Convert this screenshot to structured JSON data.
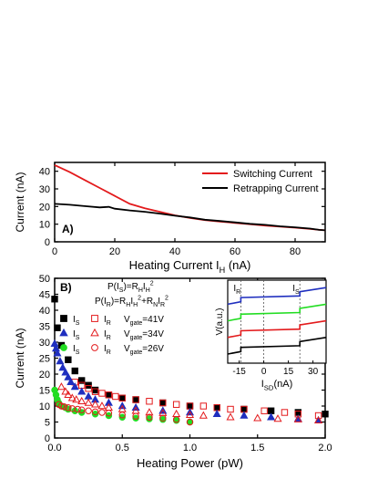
{
  "chart_data": [
    {
      "type": "line",
      "panel_label": "A)",
      "xlabel": "Heating Current I",
      "xlabel_sub": "H",
      "xlabel_unit": " (nA)",
      "ylabel": "Current (nA)",
      "xlim": [
        0,
        90
      ],
      "ylim": [
        0,
        45
      ],
      "xticks": [
        0,
        20,
        40,
        60,
        80
      ],
      "yticks": [
        0,
        10,
        20,
        30,
        40
      ],
      "grid": false,
      "legend_position": "top-right",
      "series": [
        {
          "name": "Switching Current",
          "color": "#e31a1c",
          "x": [
            0,
            5,
            10,
            15,
            20,
            25,
            30,
            35,
            40,
            45,
            50,
            55,
            60,
            65,
            70,
            75,
            80,
            85,
            88,
            90
          ],
          "y": [
            43.5,
            39.5,
            35,
            30.5,
            26,
            21.5,
            19,
            17,
            15,
            13.5,
            12.3,
            11.5,
            10.7,
            10,
            9.2,
            8.6,
            8,
            7.3,
            6.8,
            6.5
          ]
        },
        {
          "name": "Retrapping Current",
          "color": "#000000",
          "x": [
            0,
            5,
            10,
            15,
            18,
            20,
            25,
            30,
            35,
            40,
            45,
            50,
            55,
            60,
            65,
            70,
            75,
            80,
            85,
            88,
            90
          ],
          "y": [
            21.5,
            21,
            20.2,
            19.5,
            19.8,
            18.8,
            17.8,
            17,
            16,
            14.8,
            13.8,
            12.5,
            11.8,
            11,
            10.2,
            9.6,
            8.8,
            8.2,
            7.5,
            6.8,
            6.5
          ]
        }
      ]
    },
    {
      "type": "scatter",
      "panel_label": "B)",
      "xlabel": "Heating Power (pW)",
      "ylabel": "Current (nA)",
      "xlim": [
        0,
        2
      ],
      "ylim": [
        0,
        50
      ],
      "xticks": [
        0.0,
        0.5,
        1.0,
        1.5,
        2.0
      ],
      "yticks": [
        0,
        5,
        10,
        15,
        20,
        25,
        30,
        35,
        40,
        45,
        50
      ],
      "xtick_labels": [
        "0.0",
        "0.5",
        "1.0",
        "1.5",
        "2.0"
      ],
      "grid": false,
      "equation1": "P(I_S)=R_H I_H^2",
      "equation2": "P(I_R)=R_H I_H^2+R_N I_R^2",
      "series": [
        {
          "name": "I_S V_gate=41V",
          "marker": "square-filled",
          "color": "#000000",
          "x": [
            0.0,
            0.02,
            0.05,
            0.1,
            0.15,
            0.2,
            0.25,
            0.3,
            0.4,
            0.5,
            0.6,
            0.8,
            1.0,
            1.2,
            1.4,
            1.6,
            1.8,
            2.0
          ],
          "y": [
            43.5,
            34.5,
            29,
            24.5,
            21,
            18,
            16.5,
            15,
            13.5,
            12.5,
            12,
            11,
            10,
            9.5,
            9,
            8.5,
            8,
            7.5
          ]
        },
        {
          "name": "I_R V_gate=41V",
          "marker": "square-open",
          "color": "#e31a1c",
          "x": [
            0.15,
            0.2,
            0.25,
            0.3,
            0.35,
            0.4,
            0.45,
            0.5,
            0.6,
            0.7,
            0.8,
            0.9,
            1.0,
            1.1,
            1.2,
            1.3,
            1.4,
            1.55,
            1.7,
            1.8,
            1.95
          ],
          "y": [
            17.5,
            16.5,
            15.5,
            14.5,
            14,
            13.5,
            13,
            12.5,
            12,
            11.5,
            11,
            10.5,
            10,
            10,
            9.5,
            9,
            9,
            8.5,
            8,
            7.5,
            7
          ]
        },
        {
          "name": "I_S V_gate=34V",
          "marker": "triangle-filled",
          "color": "#1f2fbf",
          "x": [
            0.0,
            0.01,
            0.02,
            0.04,
            0.06,
            0.08,
            0.1,
            0.12,
            0.15,
            0.2,
            0.25,
            0.3,
            0.4,
            0.5,
            0.6,
            0.8,
            1.0,
            1.2,
            1.4,
            1.6,
            1.8,
            1.95
          ],
          "y": [
            29.5,
            28,
            26.5,
            24,
            22,
            20.5,
            19,
            17.5,
            16,
            14.5,
            13,
            12,
            11,
            10,
            9.5,
            8.5,
            8,
            7.5,
            7,
            6.5,
            6,
            5.5
          ]
        },
        {
          "name": "I_R V_gate=34V",
          "marker": "triangle-open",
          "color": "#e31a1c",
          "x": [
            0.05,
            0.08,
            0.1,
            0.13,
            0.16,
            0.2,
            0.25,
            0.3,
            0.35,
            0.4,
            0.5,
            0.6,
            0.7,
            0.8,
            0.9,
            1.0,
            1.1,
            1.3,
            1.5,
            1.65,
            1.8,
            1.95
          ],
          "y": [
            16,
            14.5,
            13.5,
            12.5,
            12,
            11.5,
            11,
            10.5,
            10,
            9.5,
            9,
            8.5,
            8,
            7.8,
            7.5,
            7.2,
            7,
            6.5,
            6.2,
            6,
            5.8,
            5.5
          ]
        },
        {
          "name": "I_S V_gate=26V",
          "marker": "circle-filled",
          "color": "#22dd22",
          "x": [
            0.0,
            0.01,
            0.02,
            0.03,
            0.05,
            0.08,
            0.1,
            0.15,
            0.2,
            0.3,
            0.4,
            0.5,
            0.6,
            0.7,
            0.8,
            0.9,
            1.0
          ],
          "y": [
            15,
            13.5,
            12,
            11,
            10,
            9.5,
            9,
            8.5,
            8,
            7.5,
            7,
            6.5,
            6.2,
            6,
            5.8,
            5.5,
            5
          ]
        },
        {
          "name": "I_R V_gate=26V",
          "marker": "circle-open",
          "color": "#e31a1c",
          "x": [
            0.03,
            0.05,
            0.07,
            0.1,
            0.13,
            0.17,
            0.2,
            0.25,
            0.3,
            0.35,
            0.4,
            0.5,
            0.6,
            0.7,
            0.8,
            0.9,
            1.0
          ],
          "y": [
            10.5,
            10,
            9.8,
            9.5,
            9.2,
            9,
            8.8,
            8.5,
            8.2,
            8,
            7.8,
            7.2,
            6.8,
            6.5,
            6.2,
            5.8,
            5
          ]
        }
      ],
      "legend": [
        {
          "s_label": "I",
          "s_sub": "S",
          "r_label": "I",
          "r_sub": "R",
          "gate": "V",
          "gate_sub": "gate",
          "gate_val": "=41V"
        },
        {
          "s_label": "I",
          "s_sub": "S",
          "r_label": "I",
          "r_sub": "R",
          "gate": "V",
          "gate_sub": "gate",
          "gate_val": "=34V"
        },
        {
          "s_label": "I",
          "s_sub": "S",
          "r_label": "I",
          "r_sub": "R",
          "gate": "V",
          "gate_sub": "gate",
          "gate_val": "=26V"
        }
      ]
    },
    {
      "type": "line",
      "role": "inset",
      "xlabel": "I",
      "xlabel_sub": "SD",
      "xlabel_unit": "(nA)",
      "ylabel": "V(a.u.)",
      "xlim": [
        -22,
        38
      ],
      "xticks": [
        -15,
        0,
        15,
        30
      ],
      "annotations": [
        {
          "text": "I",
          "sub": "R",
          "x": -14
        },
        {
          "text": "I",
          "sub": "S",
          "x": 22
        }
      ],
      "dashed_lines_x": [
        -14,
        0,
        22
      ],
      "series": [
        {
          "color": "#1f2fbf",
          "x": [
            -22,
            -14,
            -14,
            22,
            22,
            38
          ],
          "y": [
            3.55,
            3.7,
            3.95,
            4.05,
            4.3,
            4.55
          ]
        },
        {
          "color": "#22dd22",
          "x": [
            -22,
            -14,
            -14,
            22,
            22,
            38
          ],
          "y": [
            2.55,
            2.7,
            2.95,
            3.05,
            3.3,
            3.55
          ]
        },
        {
          "color": "#e31a1c",
          "x": [
            -22,
            -14,
            -14,
            22,
            22,
            38
          ],
          "y": [
            1.55,
            1.7,
            1.95,
            2.05,
            2.3,
            2.55
          ]
        },
        {
          "color": "#000000",
          "x": [
            -22,
            -14,
            -14,
            22,
            22,
            38
          ],
          "y": [
            0.55,
            0.7,
            0.95,
            1.05,
            1.3,
            1.55
          ]
        }
      ]
    }
  ]
}
